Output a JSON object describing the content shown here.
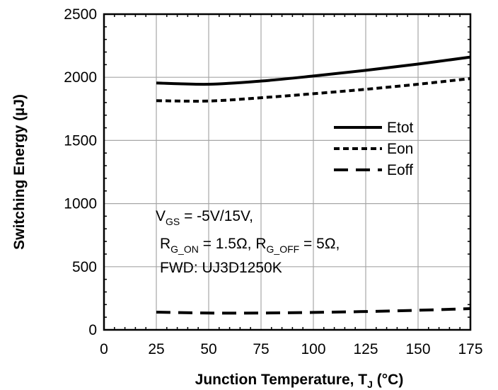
{
  "chart_data": {
    "type": "line",
    "xlabel": "Junction Temperature, T",
    "xlabel_sub": "J",
    "xlabel_unit": " (°C)",
    "ylabel": "Switching Energy (µJ)",
    "xlim": [
      0,
      175
    ],
    "ylim": [
      0,
      2500
    ],
    "xticks": [
      0,
      25,
      50,
      75,
      100,
      125,
      150,
      175
    ],
    "yticks": [
      0,
      500,
      1000,
      1500,
      2000,
      2500
    ],
    "grid": true,
    "legend_position": "right",
    "series": [
      {
        "name": "Etot",
        "style": "solid",
        "x": [
          25,
          50,
          75,
          100,
          125,
          150,
          175
        ],
        "values": [
          1955,
          1945,
          1970,
          2010,
          2055,
          2105,
          2160
        ]
      },
      {
        "name": "Eon",
        "style": "short-dash",
        "x": [
          25,
          50,
          75,
          100,
          125,
          150,
          175
        ],
        "values": [
          1815,
          1812,
          1838,
          1870,
          1905,
          1945,
          1990
        ]
      },
      {
        "name": "Eoff",
        "style": "long-dash",
        "x": [
          25,
          50,
          75,
          100,
          125,
          150,
          175
        ],
        "values": [
          140,
          133,
          133,
          138,
          145,
          155,
          168
        ]
      }
    ],
    "annotation": {
      "line1_main": "V",
      "line1_sub": "GS",
      "line1_rest": " = -5V/15V,",
      "line2_main1": "R",
      "line2_sub1": "G_ON",
      "line2_mid": " = 1.5Ω, R",
      "line2_sub2": "G_OFF",
      "line2_rest": " = 5Ω,",
      "line3": "FWD: UJ3D1250K"
    }
  }
}
